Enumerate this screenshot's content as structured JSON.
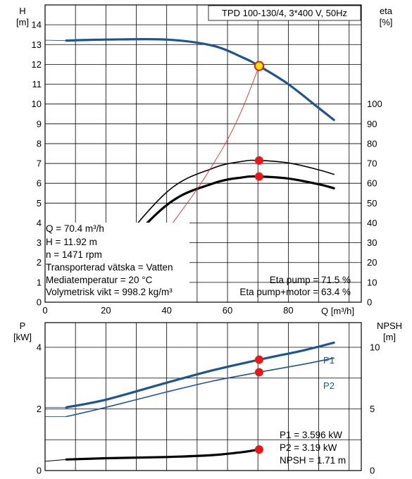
{
  "chart_data": [
    {
      "type": "line",
      "title": "TPD 100-130/4, 3*400 V, 50Hz",
      "xlabel": "Q [m³/h]",
      "ylabel_left": [
        "H",
        "[m]"
      ],
      "ylabel_right": [
        "eta",
        "[%]"
      ],
      "xlim": [
        0,
        104
      ],
      "ylim_left": [
        0,
        15
      ],
      "ylim_right": [
        0,
        150
      ],
      "x_ticks": [
        "0",
        "20",
        "40",
        "60",
        "80"
      ],
      "y_ticks_left": [
        "0",
        "1",
        "2",
        "3",
        "4",
        "5",
        "6",
        "7",
        "8",
        "9",
        "10",
        "11",
        "12",
        "13",
        "14"
      ],
      "y_ticks_right": [
        "0",
        "10",
        "20",
        "30",
        "40",
        "50",
        "60",
        "70",
        "80",
        "90",
        "100"
      ],
      "grid": true,
      "series": [
        {
          "axis": "left",
          "color": "#1d5591",
          "width": 3.2,
          "x": [
            7,
            20,
            40,
            55,
            65,
            70.4,
            80,
            90,
            95
          ],
          "y": [
            13.2,
            13.25,
            13.25,
            12.95,
            12.35,
            11.92,
            11.0,
            9.8,
            9.2
          ]
        },
        {
          "axis": "right",
          "color": "#000000",
          "width": 1.6,
          "x": [
            7,
            20,
            40,
            55,
            65,
            70.4,
            80,
            90,
            95
          ],
          "y": [
            -8.5,
            20,
            55.5,
            67.5,
            71.1,
            71.5,
            70.3,
            66.8,
            64.5
          ]
        },
        {
          "axis": "right",
          "color": "#000000",
          "width": 3.2,
          "x": [
            7,
            20,
            40,
            55,
            65,
            70.4,
            80,
            90,
            95
          ],
          "y": [
            -7.5,
            17.5,
            49,
            59.8,
            63.0,
            63.4,
            62.4,
            59.5,
            57.5
          ]
        },
        {
          "axis": "left",
          "color": "#e03030",
          "width": 0.9,
          "x": [
            42,
            50,
            55,
            60,
            65,
            70.4
          ],
          "y": [
            4.0,
            5.7,
            6.9,
            8.2,
            9.8,
            11.92
          ]
        }
      ],
      "operating_points": [
        {
          "x": 70.4,
          "y": 11.92,
          "axis": "left",
          "style": "yellow"
        },
        {
          "x": 70.4,
          "y": 71.5,
          "axis": "right",
          "style": "red"
        },
        {
          "x": 70.4,
          "y": 63.4,
          "axis": "right",
          "style": "red"
        }
      ],
      "annotations_left": [
        "Q = 70.4 m³/h",
        "H = 11.92 m",
        "n = 1471 rpm",
        "Transporterad vätska = Vatten",
        "Mediatemperatur = 20 °C",
        "Volymetrisk vikt = 998.2 kg/m³"
      ],
      "annotations_right": [
        "Eta pump = 71.5 %",
        "Eta pump+motor = 63.4 %"
      ]
    },
    {
      "type": "line",
      "xlim": [
        0,
        104
      ],
      "ylabel_left": [
        "P",
        "[kW]"
      ],
      "ylabel_right": [
        "NPSH",
        "[m]"
      ],
      "ylim_left": [
        0,
        4.8
      ],
      "ylim_right": [
        0,
        12
      ],
      "y_ticks_left": [
        "0",
        "2",
        "4"
      ],
      "y_ticks_right": [
        "0",
        "5",
        "10"
      ],
      "grid": true,
      "series": [
        {
          "name": "P1",
          "axis": "left",
          "color": "#1d5591",
          "width": 3.2,
          "x": [
            7,
            20,
            40,
            55,
            70.4,
            85,
            95
          ],
          "y": [
            2.05,
            2.3,
            2.85,
            3.25,
            3.596,
            3.9,
            4.15
          ]
        },
        {
          "name": "P2",
          "axis": "left",
          "color": "#1d5591",
          "width": 1.6,
          "x": [
            7,
            20,
            40,
            55,
            70.4,
            85,
            95
          ],
          "y": [
            1.75,
            2.05,
            2.55,
            2.9,
            3.19,
            3.45,
            3.65
          ]
        },
        {
          "axis": "right",
          "color": "#000000",
          "width": 3.2,
          "x": [
            7,
            20,
            40,
            55,
            65,
            70.4
          ],
          "y": [
            0.9,
            1.0,
            1.1,
            1.25,
            1.5,
            1.71
          ]
        }
      ],
      "operating_points": [
        {
          "x": 70.4,
          "y": 3.596,
          "axis": "left",
          "style": "red"
        },
        {
          "x": 70.4,
          "y": 3.19,
          "axis": "left",
          "style": "red"
        },
        {
          "x": 70.4,
          "y": 1.71,
          "axis": "right",
          "style": "red"
        }
      ],
      "annotations_right": [
        "P1 = 3.596 kW",
        "P2 = 3.19 kW",
        "NPSH = 1.71 m"
      ]
    }
  ]
}
